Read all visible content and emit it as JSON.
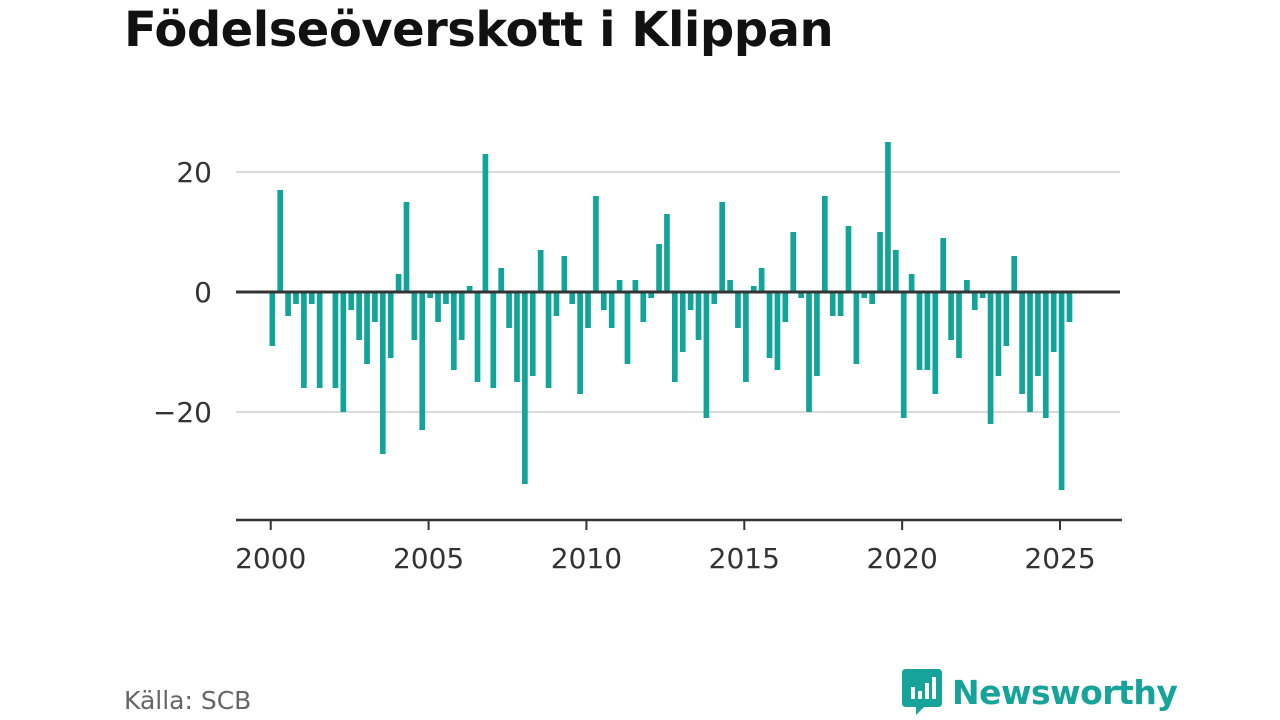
{
  "title": "Födelseöverskott i Klippan",
  "source": "Källa: SCB",
  "logo": {
    "text": "Newsworthy",
    "icon": "bar-chart-speech-bubble-icon"
  },
  "colors": {
    "bar": "#13a499",
    "zero_line": "#333333",
    "grid": "#d9d9d9",
    "axis": "#333333",
    "logo": "#16a39a"
  },
  "chart_data": {
    "type": "bar",
    "title": "Födelseöverskott i Klippan",
    "xlabel": "",
    "ylabel": "",
    "xlim": [
      1998.9,
      2026.9
    ],
    "ylim": [
      -38,
      27
    ],
    "y_ticks": [
      20,
      0,
      -20
    ],
    "y_tick_labels": [
      "20",
      "0",
      "−20"
    ],
    "x_ticks": [
      2000,
      2005,
      2010,
      2015,
      2020,
      2025
    ],
    "x_tick_labels": [
      "2000",
      "2005",
      "2010",
      "2015",
      "2020",
      "2025"
    ],
    "grid": true,
    "frequency": "quarterly",
    "start_quarter": "2000 Q1",
    "values": [
      -9,
      17,
      -4,
      -2,
      -16,
      -2,
      -16,
      0,
      -16,
      -20,
      -3,
      -8,
      -12,
      -5,
      -27,
      -11,
      3,
      15,
      -8,
      -23,
      -1,
      -5,
      -2,
      -13,
      -8,
      1,
      -15,
      23,
      -16,
      4,
      -6,
      -15,
      -32,
      -14,
      7,
      -16,
      -4,
      6,
      -2,
      -17,
      -6,
      16,
      -3,
      -6,
      2,
      -12,
      2,
      -5,
      -1,
      8,
      13,
      -15,
      -10,
      -3,
      -8,
      -21,
      -2,
      15,
      2,
      -6,
      -15,
      1,
      4,
      -11,
      -13,
      -5,
      10,
      -1,
      -20,
      -14,
      16,
      -4,
      -4,
      11,
      -12,
      -1,
      -2,
      10,
      25,
      7,
      -21,
      3,
      -13,
      -13,
      -17,
      9,
      -8,
      -11,
      2,
      -3,
      -1,
      -22,
      -14,
      -9,
      6,
      -17,
      -20,
      -14,
      -21,
      -10,
      -33,
      -5
    ]
  }
}
